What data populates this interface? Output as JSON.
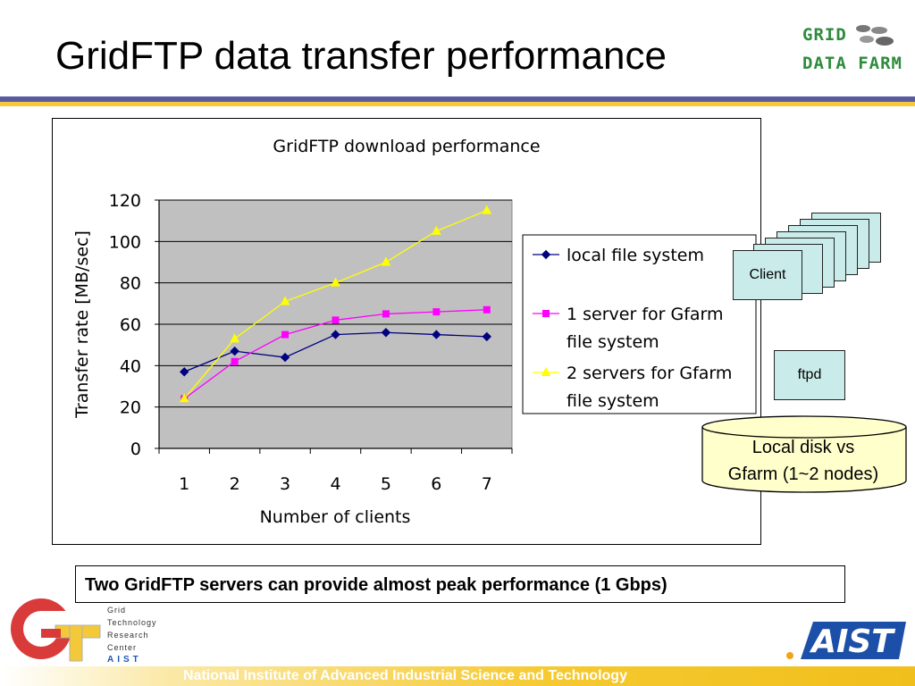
{
  "slide": {
    "title": "GridFTP data transfer performance",
    "logo_line1": "GRID",
    "logo_line2": "DATA FARM",
    "callout": "Two GridFTP servers can provide almost peak performance (1 Gbps)",
    "footer": "National Institute of Advanced Industrial Science and Technology",
    "gtrc_lines": [
      "Grid",
      "Technology",
      "Research",
      "Center"
    ],
    "gtrc_org": "AIST",
    "aist_logo": "AIST"
  },
  "diagram": {
    "client_label": "Client",
    "ftpd_label": "ftpd",
    "disk_line1": "Local disk vs",
    "disk_line2": "Gfarm (1~2 nodes)"
  },
  "colors": {
    "plot_bg": "#c0c0c0",
    "box_fill": "#c9ecea",
    "accent_purple": "#5a5aa0",
    "accent_yellow": "#f3c93a",
    "disk_fill": "#ffffcc"
  },
  "chart_data": {
    "type": "line",
    "title": "GridFTP download performance",
    "xlabel": "Number of clients",
    "ylabel": "Transfer rate [MB/sec]",
    "x": [
      1,
      2,
      3,
      4,
      5,
      6,
      7
    ],
    "ylim": [
      0,
      120
    ],
    "yticks": [
      0,
      20,
      40,
      60,
      80,
      100,
      120
    ],
    "grid": true,
    "legend_position": "right",
    "series": [
      {
        "name_lines": [
          "local file system"
        ],
        "color": "#000080",
        "marker": "diamond",
        "values": [
          37,
          47,
          44,
          55,
          56,
          55,
          54
        ]
      },
      {
        "name_lines": [
          "1 server for Gfarm",
          "file system"
        ],
        "color": "#ff00ff",
        "marker": "square",
        "values": [
          24,
          42,
          55,
          62,
          65,
          66,
          67
        ]
      },
      {
        "name_lines": [
          "2 servers for Gfarm",
          "file system"
        ],
        "color": "#ffff00",
        "marker": "triangle",
        "values": [
          24,
          53,
          71,
          80,
          90,
          105,
          115
        ]
      }
    ]
  }
}
